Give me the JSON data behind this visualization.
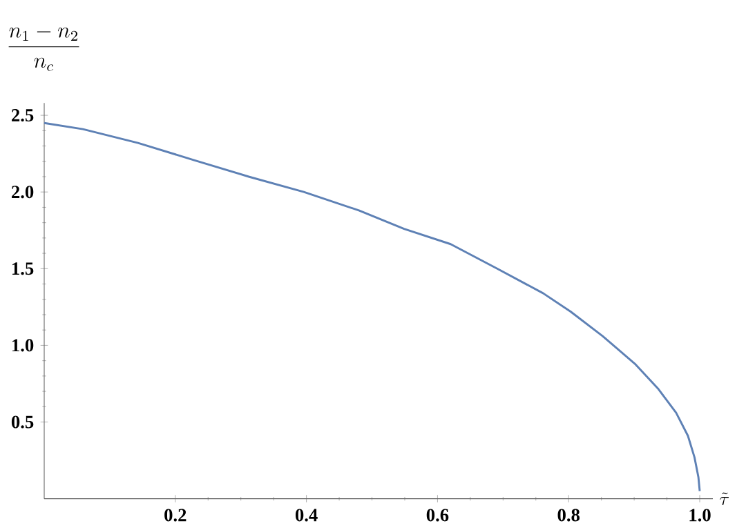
{
  "chart_data": {
    "type": "line",
    "xlabel": "\\tilde{\\tau}",
    "ylabel": "\\frac{n_1-n_2}{n_c}",
    "x": [
      0,
      0.059,
      0.143,
      0.227,
      0.312,
      0.396,
      0.48,
      0.549,
      0.62,
      0.691,
      0.761,
      0.803,
      0.852,
      0.901,
      0.936,
      0.964,
      0.982,
      0.992,
      0.998,
      1.0
    ],
    "series": [
      {
        "color": "#5e81b5",
        "values": [
          2.45,
          2.41,
          2.32,
          2.21,
          2.1,
          2.0,
          1.88,
          1.76,
          1.66,
          1.5,
          1.34,
          1.22,
          1.06,
          0.88,
          0.72,
          0.56,
          0.41,
          0.27,
          0.14,
          0.05
        ]
      }
    ],
    "xlim": [
      0,
      1.02
    ],
    "ylim": [
      0,
      2.58
    ],
    "xticks": [
      0.2,
      0.4,
      0.6,
      0.8,
      {
        "value": 1,
        "label": "1.0"
      }
    ],
    "yticks": [
      0.5,
      {
        "value": 1,
        "label": "1.0"
      },
      1.5,
      {
        "value": 2,
        "label": "2.0"
      },
      2.5
    ],
    "grid": false,
    "marker": "none",
    "line_style": "solid"
  }
}
